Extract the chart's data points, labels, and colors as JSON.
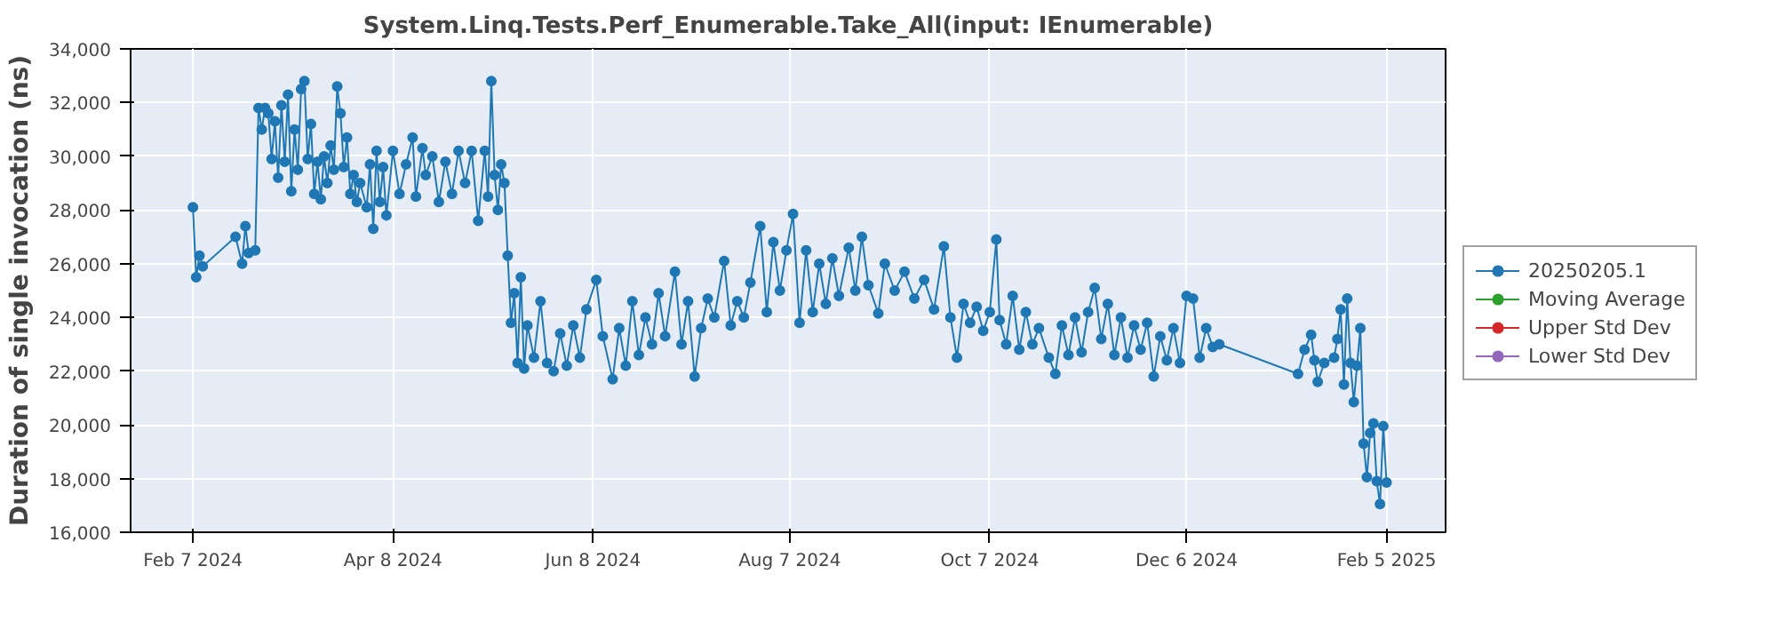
{
  "chart_data": {
    "type": "line",
    "title": "System.Linq.Tests.Perf_Enumerable.Take_All(input: IEnumerable)",
    "ylabel": "Duration of single invocation (ns)",
    "xlim": [
      "2024-01-19",
      "2025-02-23"
    ],
    "xticks": [
      {
        "value": "2024-02-07",
        "label": "Feb 7 2024"
      },
      {
        "value": "2024-04-08",
        "label": "Apr 8 2024"
      },
      {
        "value": "2024-06-08",
        "label": "Jun 8 2024"
      },
      {
        "value": "2024-08-07",
        "label": "Aug 7 2024"
      },
      {
        "value": "2024-10-07",
        "label": "Oct 7 2024"
      },
      {
        "value": "2024-12-06",
        "label": "Dec 6 2024"
      },
      {
        "value": "2025-02-05",
        "label": "Feb 5 2025"
      }
    ],
    "ylim": [
      16000,
      34000
    ],
    "yticks": [
      {
        "value": 16000,
        "label": "16,000"
      },
      {
        "value": 18000,
        "label": "18,000"
      },
      {
        "value": 20000,
        "label": "20,000"
      },
      {
        "value": 22000,
        "label": "22,000"
      },
      {
        "value": 24000,
        "label": "24,000"
      },
      {
        "value": 26000,
        "label": "26,000"
      },
      {
        "value": 28000,
        "label": "28,000"
      },
      {
        "value": 30000,
        "label": "30,000"
      },
      {
        "value": 32000,
        "label": "32,000"
      },
      {
        "value": 34000,
        "label": "34,000"
      }
    ],
    "grid": true,
    "legend": "right",
    "marker": "circle",
    "line_style": "solid",
    "series": [
      {
        "name": "20250205.1",
        "color": "#1f77b4",
        "x": [
          "2024-02-07",
          "2024-02-08",
          "2024-02-09",
          "2024-02-10",
          "2024-02-20",
          "2024-02-22",
          "2024-02-23",
          "2024-02-24",
          "2024-02-26",
          "2024-02-27",
          "2024-02-28",
          "2024-02-29",
          "2024-03-01",
          "2024-03-02",
          "2024-03-03",
          "2024-03-04",
          "2024-03-05",
          "2024-03-06",
          "2024-03-07",
          "2024-03-08",
          "2024-03-09",
          "2024-03-10",
          "2024-03-11",
          "2024-03-12",
          "2024-03-13",
          "2024-03-14",
          "2024-03-15",
          "2024-03-16",
          "2024-03-17",
          "2024-03-18",
          "2024-03-19",
          "2024-03-20",
          "2024-03-21",
          "2024-03-22",
          "2024-03-23",
          "2024-03-24",
          "2024-03-25",
          "2024-03-26",
          "2024-03-27",
          "2024-03-28",
          "2024-03-29",
          "2024-03-31",
          "2024-04-01",
          "2024-04-02",
          "2024-04-03",
          "2024-04-04",
          "2024-04-05",
          "2024-04-06",
          "2024-04-08",
          "2024-04-10",
          "2024-04-12",
          "2024-04-14",
          "2024-04-15",
          "2024-04-17",
          "2024-04-18",
          "2024-04-20",
          "2024-04-22",
          "2024-04-24",
          "2024-04-26",
          "2024-04-28",
          "2024-04-30",
          "2024-05-02",
          "2024-05-04",
          "2024-05-06",
          "2024-05-07",
          "2024-05-08",
          "2024-05-09",
          "2024-05-10",
          "2024-05-11",
          "2024-05-12",
          "2024-05-13",
          "2024-05-14",
          "2024-05-15",
          "2024-05-16",
          "2024-05-17",
          "2024-05-18",
          "2024-05-19",
          "2024-05-21",
          "2024-05-23",
          "2024-05-25",
          "2024-05-27",
          "2024-05-29",
          "2024-05-31",
          "2024-06-02",
          "2024-06-04",
          "2024-06-06",
          "2024-06-09",
          "2024-06-11",
          "2024-06-14",
          "2024-06-16",
          "2024-06-18",
          "2024-06-20",
          "2024-06-22",
          "2024-06-24",
          "2024-06-26",
          "2024-06-28",
          "2024-06-30",
          "2024-07-03",
          "2024-07-05",
          "2024-07-07",
          "2024-07-09",
          "2024-07-11",
          "2024-07-13",
          "2024-07-15",
          "2024-07-18",
          "2024-07-20",
          "2024-07-22",
          "2024-07-24",
          "2024-07-26",
          "2024-07-29",
          "2024-07-31",
          "2024-08-02",
          "2024-08-04",
          "2024-08-06",
          "2024-08-08",
          "2024-08-10",
          "2024-08-12",
          "2024-08-14",
          "2024-08-16",
          "2024-08-18",
          "2024-08-20",
          "2024-08-22",
          "2024-08-25",
          "2024-08-27",
          "2024-08-29",
          "2024-08-31",
          "2024-09-03",
          "2024-09-05",
          "2024-09-08",
          "2024-09-11",
          "2024-09-14",
          "2024-09-17",
          "2024-09-20",
          "2024-09-23",
          "2024-09-25",
          "2024-09-27",
          "2024-09-29",
          "2024-10-01",
          "2024-10-03",
          "2024-10-05",
          "2024-10-07",
          "2024-10-09",
          "2024-10-10",
          "2024-10-12",
          "2024-10-14",
          "2024-10-16",
          "2024-10-18",
          "2024-10-20",
          "2024-10-22",
          "2024-10-25",
          "2024-10-27",
          "2024-10-29",
          "2024-10-31",
          "2024-11-02",
          "2024-11-04",
          "2024-11-06",
          "2024-11-08",
          "2024-11-10",
          "2024-11-12",
          "2024-11-14",
          "2024-11-16",
          "2024-11-18",
          "2024-11-20",
          "2024-11-22",
          "2024-11-24",
          "2024-11-26",
          "2024-11-28",
          "2024-11-30",
          "2024-12-02",
          "2024-12-04",
          "2024-12-06",
          "2024-12-08",
          "2024-12-10",
          "2024-12-12",
          "2024-12-14",
          "2024-12-16",
          "2025-01-09",
          "2025-01-11",
          "2025-01-13",
          "2025-01-14",
          "2025-01-15",
          "2025-01-17",
          "2025-01-20",
          "2025-01-21",
          "2025-01-22",
          "2025-01-23",
          "2025-01-24",
          "2025-01-25",
          "2025-01-26",
          "2025-01-27",
          "2025-01-28",
          "2025-01-29",
          "2025-01-30",
          "2025-01-31",
          "2025-02-01",
          "2025-02-02",
          "2025-02-03",
          "2025-02-04",
          "2025-02-05"
        ],
        "values": [
          28100,
          25500,
          26300,
          25900,
          27000,
          26000,
          27400,
          26400,
          26500,
          31800,
          31000,
          31800,
          31600,
          29900,
          31300,
          29200,
          31900,
          29800,
          32300,
          28700,
          31000,
          29500,
          32500,
          32800,
          29900,
          31200,
          28600,
          29800,
          28400,
          30000,
          29000,
          30400,
          29500,
          32600,
          31600,
          29600,
          30700,
          28600,
          29300,
          28300,
          29000,
          28100,
          29700,
          27300,
          30200,
          28300,
          29600,
          27800,
          30200,
          28600,
          29700,
          30700,
          28500,
          30300,
          29300,
          30000,
          28300,
          29800,
          28600,
          30200,
          29000,
          30200,
          27600,
          30200,
          28500,
          32800,
          29300,
          28000,
          29700,
          29000,
          26300,
          23800,
          24900,
          22300,
          25500,
          22100,
          23700,
          22500,
          24600,
          22300,
          22000,
          23400,
          22200,
          23700,
          22500,
          24300,
          25400,
          23300,
          21700,
          23600,
          22200,
          24600,
          22600,
          24000,
          23000,
          24900,
          23300,
          25700,
          23000,
          24600,
          21800,
          23600,
          24700,
          24000,
          26100,
          23700,
          24600,
          24000,
          25300,
          27400,
          24200,
          26800,
          25000,
          26500,
          27850,
          23800,
          26500,
          24200,
          26000,
          24500,
          26200,
          24800,
          26600,
          25000,
          27000,
          25200,
          24150,
          26000,
          25000,
          25700,
          24700,
          25400,
          24300,
          26650,
          24000,
          22500,
          24500,
          23800,
          24400,
          23500,
          24200,
          26900,
          23900,
          23000,
          24800,
          22800,
          24200,
          23000,
          23600,
          22500,
          21900,
          23700,
          22600,
          24000,
          22700,
          24200,
          25100,
          23200,
          24500,
          22600,
          24000,
          22500,
          23700,
          22800,
          23800,
          21800,
          23300,
          22400,
          23600,
          22300,
          24800,
          24700,
          22500,
          23600,
          22900,
          23000,
          21900,
          22800,
          23350,
          22400,
          21600,
          22300,
          22500,
          23200,
          24300,
          21500,
          24700,
          22300,
          20850,
          22200,
          23600,
          19300,
          18050,
          19700,
          20050,
          17900,
          17050,
          19950,
          17850
        ]
      },
      {
        "name": "Moving Average",
        "color": "#2ca02c"
      },
      {
        "name": "Upper Std Dev",
        "color": "#d62728"
      },
      {
        "name": "Lower Std Dev",
        "color": "#9467bd"
      }
    ]
  }
}
